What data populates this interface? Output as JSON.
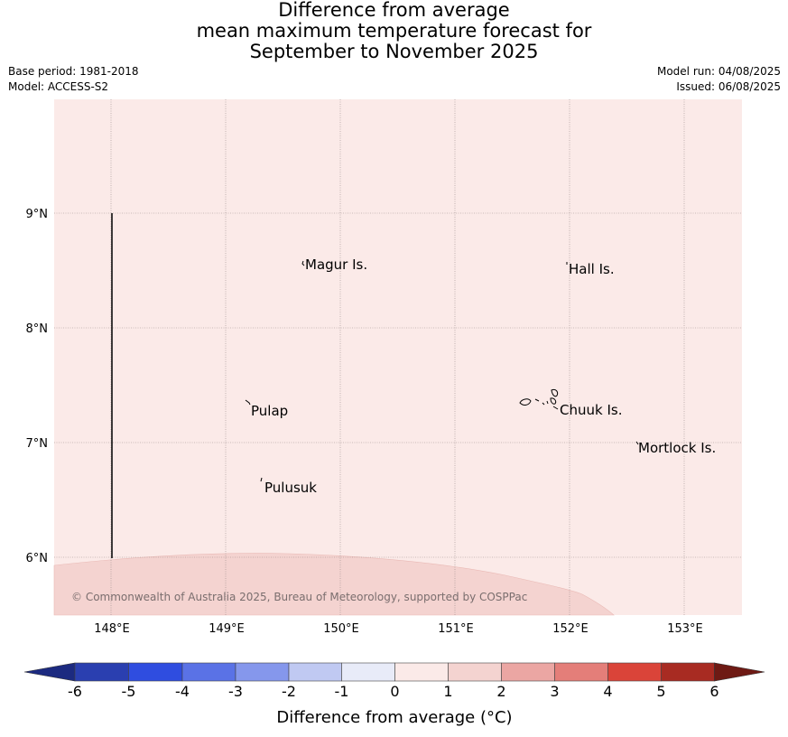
{
  "title": {
    "line1": "Difference from average",
    "line2": "mean maximum temperature forecast for",
    "line3": "September to November 2025"
  },
  "meta": {
    "base_period": "Base period: 1981-2018",
    "model": "Model: ACCESS-S2",
    "model_run": "Model run: 04/08/2025",
    "issued": "Issued: 06/08/2025"
  },
  "map": {
    "background_color": "#fbeae8",
    "lower_band_color": "#f4d3d0",
    "lon_ticks": [
      "148°E",
      "149°E",
      "150°E",
      "151°E",
      "152°E",
      "153°E"
    ],
    "lat_ticks": [
      "9°N",
      "8°N",
      "7°N",
      "6°N"
    ],
    "places": [
      "Magur Is.",
      "Hall Is.",
      "Pulap",
      "Chuuk Is.",
      "Mortlock Is.",
      "Pulusuk"
    ],
    "copyright": "© Commonwealth of Australia 2025, Bureau of Meteorology, supported by COSPPac"
  },
  "colorbar": {
    "ticks": [
      "-6",
      "-5",
      "-4",
      "-3",
      "-2",
      "-1",
      "0",
      "1",
      "2",
      "3",
      "4",
      "5",
      "6"
    ],
    "colors": [
      "#2a3fb0",
      "#2f4de0",
      "#5a72e6",
      "#8597ec",
      "#c0c9f2",
      "#e8ebf8",
      "#fbeae8",
      "#f4d3d0",
      "#eba6a3",
      "#e47e79",
      "#da4439",
      "#a82b22"
    ],
    "low_extend_color": "#1c2a80",
    "high_extend_color": "#6e1a14",
    "label": "Difference from average (°C)"
  }
}
